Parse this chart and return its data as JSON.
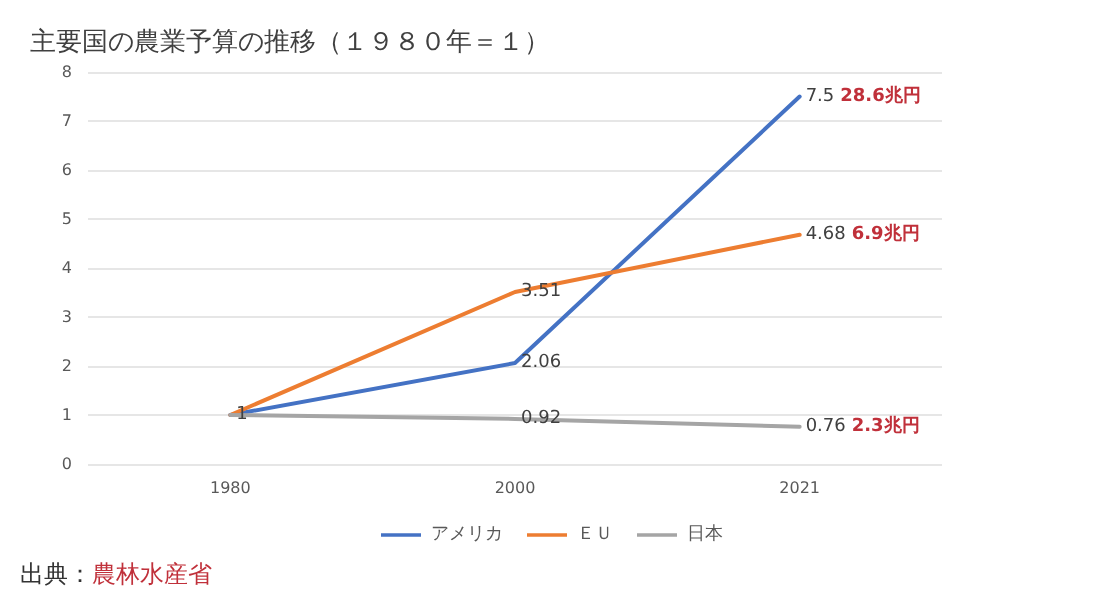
{
  "chart_data": {
    "type": "line",
    "title": "主要国の農業予算の推移（１９８０年＝１）",
    "categories": [
      "1980",
      "2000",
      "2021"
    ],
    "series": [
      {
        "name": "アメリカ",
        "color": "#4472c4",
        "values": [
          1,
          2.06,
          7.5
        ],
        "value_labels": [
          null,
          "2.06",
          "7.5"
        ]
      },
      {
        "name": "ＥＵ",
        "color": "#ed7d31",
        "values": [
          1,
          3.51,
          4.68
        ],
        "value_labels": [
          null,
          "3.51",
          "4.68"
        ]
      },
      {
        "name": "日本",
        "color": "#a5a5a5",
        "values": [
          1,
          0.92,
          0.76
        ],
        "value_labels": [
          "1",
          "0.92",
          "0.76"
        ]
      }
    ],
    "ylim": [
      0,
      8
    ],
    "yticks": [
      0,
      1,
      2,
      3,
      4,
      5,
      6,
      7,
      8
    ],
    "grid": "y",
    "legend": "bottom",
    "marker": "none",
    "annotations": [
      {
        "text": "28.6兆円",
        "x": "2021",
        "y": 7.5
      },
      {
        "text": "6.9兆円",
        "x": "2021",
        "y": 4.68
      },
      {
        "text": "2.3兆円",
        "x": "2021",
        "y": 0.76
      },
      "出典：農林水産省"
    ]
  }
}
